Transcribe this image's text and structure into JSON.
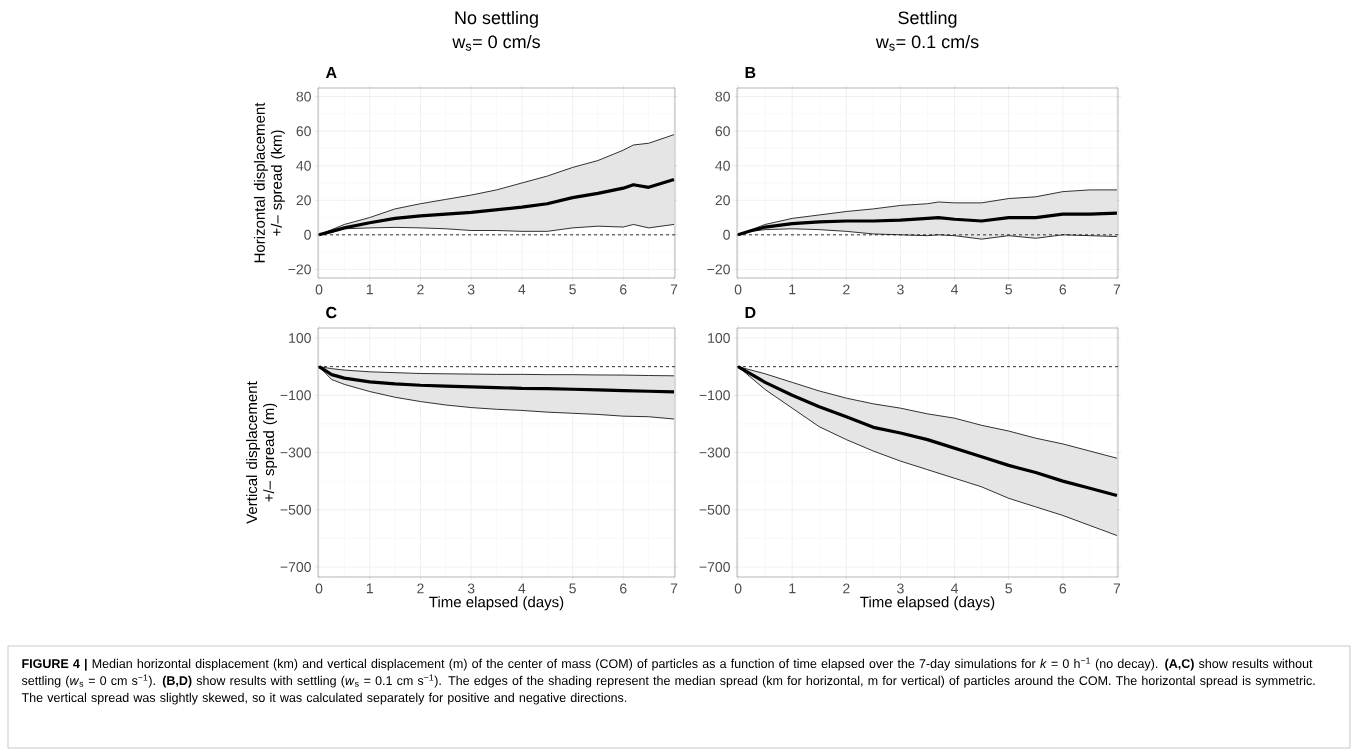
{
  "chart_data": [
    {
      "type": "line",
      "title": "No settling",
      "subtitle": "w$_{s}$= 0 cm/s",
      "ylabel": "Horizontal displacement +/– spread (km)",
      "annotations": [
        "A",
        "**FIGURE 4 |** Median horizontal displacement (km) and vertical displacement (m) of the center of mass (COM) of particles as a function of time elapsed over the 7-day simulations for *k* = 0 h$^{−1}$ (no decay). **(A,C)** show results without settling (*w*$_{s}$ = 0 cm s$^{−1}$). **(B,D)** show results with settling (*w*$_{s}$ = 0.1 cm s$^{−1}$). The edges of the shading represent the median spread (km for horizontal, m for vertical) of particles around the COM. The horizontal spread is symmetric. The vertical spread was slightly skewed, so it was calculated separately for positive and negative directions."
      ],
      "x": [
        0,
        0.25,
        0.5,
        1,
        1.5,
        2,
        2.5,
        3,
        3.5,
        4,
        4.5,
        5,
        5.5,
        6,
        6.2,
        6.5,
        7
      ],
      "series": [
        {
          "color": "#000000",
          "values": [
            0,
            2,
            4,
            7,
            9.5,
            11,
            12,
            13,
            14.5,
            16,
            18,
            21.5,
            24,
            27,
            29,
            27.5,
            32
          ],
          "upper": [
            0,
            3,
            6,
            10,
            15,
            18,
            20.5,
            23,
            26,
            30,
            34,
            39,
            43,
            49,
            52,
            53,
            58
          ],
          "lower": [
            0,
            1.5,
            3.5,
            4,
            4.3,
            4,
            3.5,
            2.5,
            2.5,
            2,
            2,
            4,
            5,
            4.5,
            6,
            4,
            6
          ]
        }
      ],
      "xlim": [
        -0.02,
        7.02
      ],
      "ylim": [
        -25,
        85
      ],
      "xticks": [
        0,
        1,
        2,
        3,
        4,
        5,
        6,
        7
      ],
      "yticks": [
        {
          "value": -20,
          "label": "−20"
        },
        0,
        20,
        40,
        60,
        80
      ],
      "grid": true,
      "ref_lines": [
        {
          "axis": "y",
          "value": 0,
          "line_style": "dashed"
        }
      ]
    },
    {
      "type": "line",
      "title": "Settling",
      "subtitle": "w$_{s}$= 0.1 cm/s",
      "annotations": [
        "B"
      ],
      "x": [
        0,
        0.25,
        0.5,
        1,
        1.5,
        2,
        2.5,
        3,
        3.5,
        3.7,
        4,
        4.5,
        5,
        5.5,
        6,
        6.5,
        7
      ],
      "series": [
        {
          "color": "#000000",
          "values": [
            0,
            2.5,
            4.5,
            6.5,
            7.5,
            8,
            8,
            8.5,
            9.5,
            10,
            9,
            8,
            10,
            10,
            12,
            12,
            12.5
          ],
          "upper": [
            0,
            3,
            6,
            9.5,
            11.5,
            13.5,
            15,
            17,
            18,
            19,
            18.5,
            18.5,
            21,
            22,
            25,
            26,
            26
          ],
          "lower": [
            0,
            2,
            3,
            3.5,
            3,
            2,
            0.5,
            0,
            -0.5,
            0,
            -0.5,
            -2.5,
            -0.5,
            -2,
            0,
            -0.5,
            -1
          ]
        }
      ],
      "xlim": [
        -0.02,
        7.02
      ],
      "ylim": [
        -25,
        85
      ],
      "xticks": [
        0,
        1,
        2,
        3,
        4,
        5,
        6,
        7
      ],
      "yticks": [
        {
          "value": -20,
          "label": "−20"
        },
        0,
        20,
        40,
        60,
        80
      ],
      "grid": true,
      "ref_lines": [
        {
          "axis": "y",
          "value": 0,
          "line_style": "dashed"
        }
      ]
    },
    {
      "type": "line",
      "xlabel": "Time elapsed (days)",
      "ylabel": "Vertical displacement +/– spread (m)",
      "annotations": [
        "C"
      ],
      "x": [
        0,
        0.25,
        0.5,
        1,
        1.5,
        2,
        2.5,
        3,
        3.5,
        4,
        4.5,
        5,
        5.5,
        6,
        6.5,
        7
      ],
      "series": [
        {
          "color": "#000000",
          "values": [
            0,
            -28,
            -40,
            -53,
            -60,
            -65,
            -68,
            -71,
            -73,
            -76,
            -77,
            -79,
            -81,
            -84,
            -86,
            -88
          ],
          "upper": [
            0,
            -7,
            -12,
            -18,
            -21,
            -24,
            -25,
            -26,
            -27,
            -27,
            -28,
            -28,
            -29,
            -29.5,
            -31,
            -32
          ],
          "lower": [
            0,
            -45,
            -62,
            -87,
            -107,
            -122,
            -134,
            -143,
            -149,
            -153,
            -159,
            -163,
            -167,
            -173,
            -175,
            -183
          ]
        }
      ],
      "xlim": [
        -0.02,
        7.02
      ],
      "ylim": [
        -735,
        135
      ],
      "xticks": [
        0,
        1,
        2,
        3,
        4,
        5,
        6,
        7
      ],
      "yticks": [
        {
          "value": -700,
          "label": "−700"
        },
        {
          "value": -500,
          "label": "−500"
        },
        {
          "value": -300,
          "label": "−300"
        },
        {
          "value": -100,
          "label": "−100"
        },
        100
      ],
      "grid": true,
      "ref_lines": [
        {
          "axis": "y",
          "value": 0,
          "line_style": "dashed"
        }
      ]
    },
    {
      "type": "line",
      "xlabel": "Time elapsed (days)",
      "annotations": [
        "D"
      ],
      "x": [
        0,
        0.5,
        1,
        1.5,
        2,
        2.5,
        3,
        3.5,
        4,
        4.5,
        5,
        5.5,
        6,
        6.5,
        7
      ],
      "series": [
        {
          "color": "#000000",
          "values": [
            0,
            -55,
            -100,
            -140,
            -175,
            -212,
            -232,
            -255,
            -285,
            -315,
            -345,
            -370,
            -400,
            -425,
            -450
          ],
          "upper": [
            0,
            -25,
            -55,
            -85,
            -110,
            -130,
            -145,
            -165,
            -180,
            -205,
            -225,
            -250,
            -270,
            -295,
            -320
          ],
          "lower": [
            0,
            -80,
            -145,
            -210,
            -255,
            -295,
            -330,
            -360,
            -390,
            -420,
            -460,
            -490,
            -520,
            -555,
            -590
          ]
        }
      ],
      "xlim": [
        -0.02,
        7.02
      ],
      "ylim": [
        -735,
        135
      ],
      "xticks": [
        0,
        1,
        2,
        3,
        4,
        5,
        6,
        7
      ],
      "yticks": [
        {
          "value": -700,
          "label": "−700"
        },
        {
          "value": -500,
          "label": "−500"
        },
        {
          "value": -300,
          "label": "−300"
        },
        {
          "value": -100,
          "label": "−100"
        },
        100
      ],
      "grid": true,
      "ref_lines": [
        {
          "axis": "y",
          "value": 0,
          "line_style": "dashed"
        }
      ]
    }
  ]
}
